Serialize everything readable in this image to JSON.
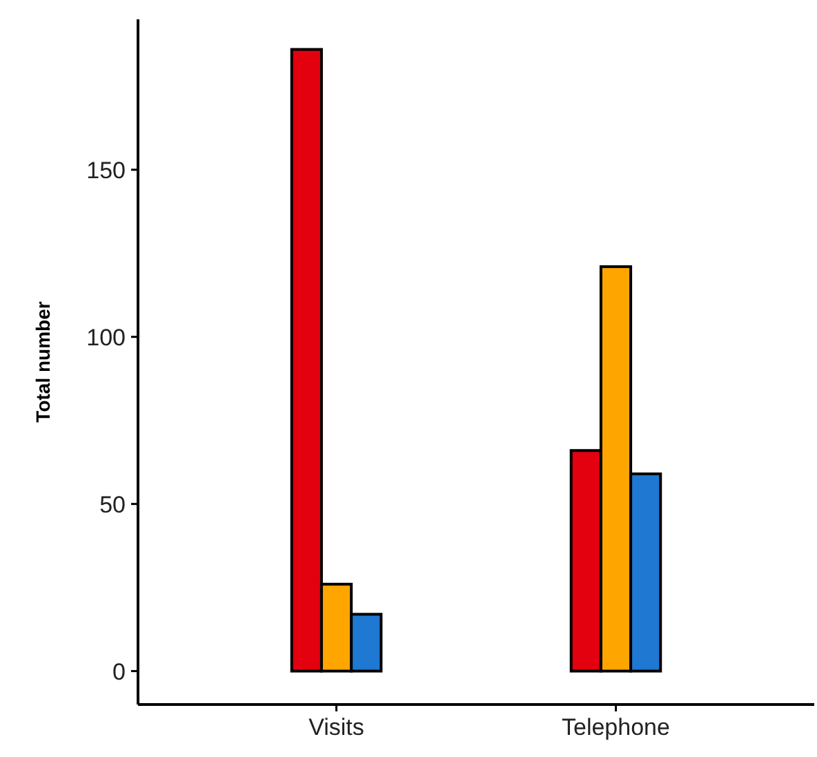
{
  "chart_data": {
    "type": "bar",
    "ylabel": "Total number",
    "categories": [
      "Visits",
      "Telephone"
    ],
    "series": [
      {
        "color": "#e3000f",
        "values": [
          186,
          66
        ]
      },
      {
        "color": "#ffa500",
        "values": [
          26,
          121
        ]
      },
      {
        "color": "#1f78d1",
        "values": [
          17,
          59
        ]
      }
    ],
    "ylim": [
      -10,
      195
    ],
    "yticks": [
      0,
      50,
      100,
      150
    ],
    "grid": false
  }
}
